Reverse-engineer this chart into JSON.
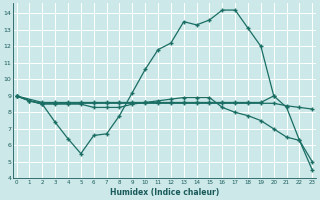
{
  "s1_x": [
    0,
    1,
    2,
    3,
    4,
    5,
    6,
    7,
    8,
    9,
    10,
    11,
    12,
    13,
    14,
    15,
    16,
    17,
    18,
    19,
    20
  ],
  "s1_y": [
    9.0,
    8.7,
    8.5,
    7.4,
    6.4,
    5.5,
    6.6,
    6.7,
    7.8,
    9.2,
    10.6,
    11.8,
    12.2,
    13.5,
    13.3,
    13.6,
    14.2,
    14.2,
    13.1,
    12.0,
    9.0
  ],
  "s2_x": [
    0,
    1,
    2,
    3,
    4,
    5,
    6,
    7,
    8,
    9,
    10,
    11,
    12,
    13,
    14,
    15,
    16,
    17,
    18,
    19,
    20,
    21,
    22,
    23
  ],
  "s2_y": [
    9.0,
    8.7,
    8.5,
    8.5,
    8.5,
    8.5,
    8.3,
    8.3,
    8.3,
    8.5,
    8.6,
    8.7,
    8.8,
    8.9,
    8.9,
    8.9,
    8.3,
    8.0,
    7.8,
    7.5,
    7.0,
    6.5,
    6.3,
    4.5
  ],
  "s3_x": [
    0,
    1,
    2,
    3,
    4,
    5,
    6,
    7,
    8,
    9,
    10,
    11,
    12,
    13,
    14,
    15,
    16,
    17,
    18,
    19,
    20,
    21,
    22,
    23
  ],
  "s3_y": [
    9.0,
    8.7,
    8.55,
    8.55,
    8.55,
    8.55,
    8.55,
    8.55,
    8.55,
    8.55,
    8.55,
    8.55,
    8.55,
    8.55,
    8.55,
    8.55,
    8.55,
    8.55,
    8.55,
    8.55,
    8.55,
    8.4,
    8.3,
    8.2
  ],
  "s4_x": [
    0,
    2,
    3,
    4,
    5,
    6,
    7,
    8,
    9,
    10,
    11,
    12,
    13,
    14,
    15,
    16,
    17,
    18,
    19,
    20,
    21,
    22,
    23
  ],
  "s4_y": [
    9.0,
    8.6,
    8.6,
    8.6,
    8.6,
    8.6,
    8.6,
    8.6,
    8.6,
    8.6,
    8.6,
    8.6,
    8.6,
    8.6,
    8.6,
    8.6,
    8.6,
    8.6,
    8.6,
    9.0,
    8.3,
    6.3,
    5.0
  ],
  "xlim": [
    -0.3,
    23.3
  ],
  "ylim": [
    4,
    14.6
  ],
  "yticks": [
    4,
    5,
    6,
    7,
    8,
    9,
    10,
    11,
    12,
    13,
    14
  ],
  "xticks": [
    0,
    1,
    2,
    3,
    4,
    5,
    6,
    7,
    8,
    9,
    10,
    11,
    12,
    13,
    14,
    15,
    16,
    17,
    18,
    19,
    20,
    21,
    22,
    23
  ],
  "xlabel": "Humidex (Indice chaleur)",
  "bg_color": "#cce8e8",
  "grid_color": "#ffffff",
  "line_color": "#1a6e64",
  "text_color": "#1a5a5a"
}
